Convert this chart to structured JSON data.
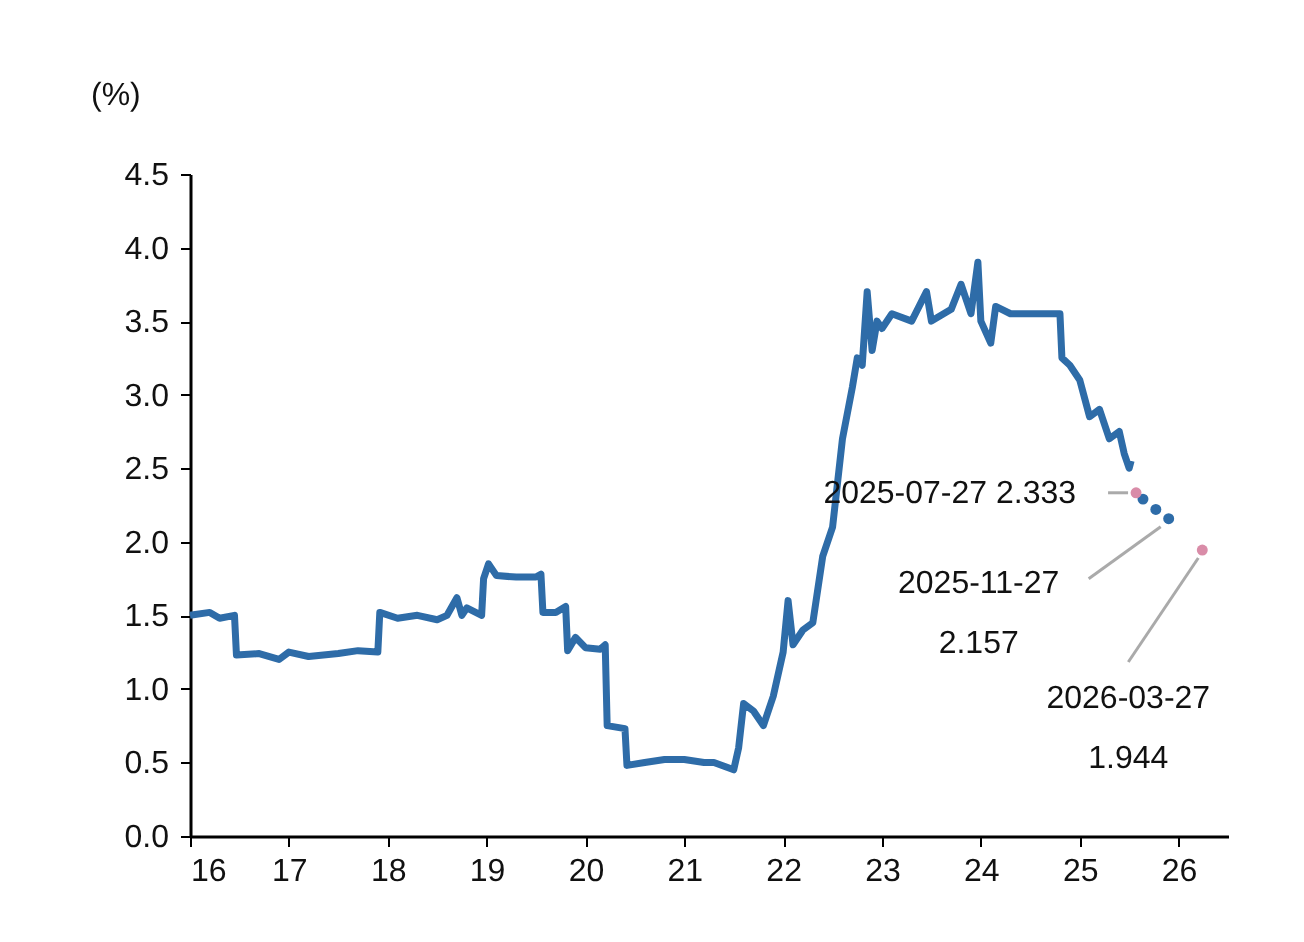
{
  "chart_data": {
    "type": "line",
    "ylabel": "(%)",
    "xlim": [
      16,
      26.5
    ],
    "xticks": [
      16,
      17,
      18,
      19,
      20,
      21,
      22,
      23,
      24,
      25,
      26
    ],
    "ylim": [
      0,
      4.5
    ],
    "yticks": [
      {
        "value": 0,
        "label": "0.0"
      },
      0.5,
      {
        "value": 1,
        "label": "1.0"
      },
      1.5,
      {
        "value": 2,
        "label": "2.0"
      },
      2.5,
      {
        "value": 3,
        "label": "3.0"
      },
      3.5,
      {
        "value": 4,
        "label": "4.0"
      },
      4.5
    ],
    "series": [
      {
        "color": "#2e6ca8",
        "x": [
          16.0,
          16.2,
          16.3,
          16.45,
          16.47,
          16.7,
          16.9,
          17.0,
          17.2,
          17.5,
          17.7,
          17.9,
          17.92,
          18.1,
          18.3,
          18.5,
          18.6,
          18.7,
          18.75,
          18.8,
          18.95,
          18.97,
          19.02,
          19.1,
          19.3,
          19.5,
          19.55,
          19.57,
          19.7,
          19.8,
          19.82,
          19.9,
          20.0,
          20.15,
          20.2,
          20.22,
          20.4,
          20.42,
          20.6,
          20.8,
          21.0,
          21.2,
          21.3,
          21.5,
          21.55,
          21.6,
          21.7,
          21.8,
          21.9,
          22.0,
          22.05,
          22.1,
          22.2,
          22.3,
          22.4,
          22.5,
          22.6,
          22.7,
          22.75,
          22.8,
          22.85,
          22.9,
          22.95,
          23.0,
          23.1,
          23.3,
          23.45,
          23.5,
          23.7,
          23.8,
          23.9,
          23.97,
          24.0,
          24.1,
          24.15,
          24.3,
          24.5,
          24.8,
          24.82,
          24.9,
          25.0,
          25.1,
          25.2,
          25.3,
          25.4,
          25.45,
          25.5,
          25.52
        ],
        "values": [
          1.5,
          1.52,
          1.48,
          1.5,
          1.23,
          1.24,
          1.2,
          1.25,
          1.22,
          1.24,
          1.26,
          1.25,
          1.52,
          1.48,
          1.5,
          1.47,
          1.5,
          1.62,
          1.5,
          1.55,
          1.5,
          1.75,
          1.85,
          1.77,
          1.76,
          1.76,
          1.78,
          1.52,
          1.52,
          1.56,
          1.26,
          1.35,
          1.28,
          1.27,
          1.3,
          0.75,
          0.73,
          0.48,
          0.5,
          0.52,
          0.52,
          0.5,
          0.5,
          0.45,
          0.6,
          0.9,
          0.85,
          0.75,
          0.95,
          1.25,
          1.6,
          1.3,
          1.4,
          1.45,
          1.9,
          2.1,
          2.7,
          3.05,
          3.25,
          3.2,
          3.7,
          3.3,
          3.5,
          3.45,
          3.55,
          3.5,
          3.7,
          3.5,
          3.58,
          3.75,
          3.55,
          3.9,
          3.5,
          3.35,
          3.6,
          3.55,
          3.55,
          3.55,
          3.25,
          3.2,
          3.1,
          2.85,
          2.9,
          2.7,
          2.75,
          2.6,
          2.5,
          2.55
        ]
      },
      {
        "type": "scatter",
        "color": "#2e6ca8",
        "x": [
          25.64,
          25.77,
          25.9
        ],
        "values": [
          2.29,
          2.22,
          2.157
        ]
      },
      {
        "type": "scatter",
        "color": "#d98ca8",
        "x": [
          25.57,
          26.24
        ],
        "values": [
          2.333,
          1.944
        ]
      }
    ],
    "annotations": [
      {
        "text": "2025-07-27 2.333",
        "x": 25.57,
        "y": 2.333
      },
      {
        "text": "2025-11-27\n2.157",
        "x": 25.9,
        "y": 2.157
      },
      {
        "text": "2026-03-27\n1.944",
        "x": 26.24,
        "y": 1.944
      }
    ]
  }
}
